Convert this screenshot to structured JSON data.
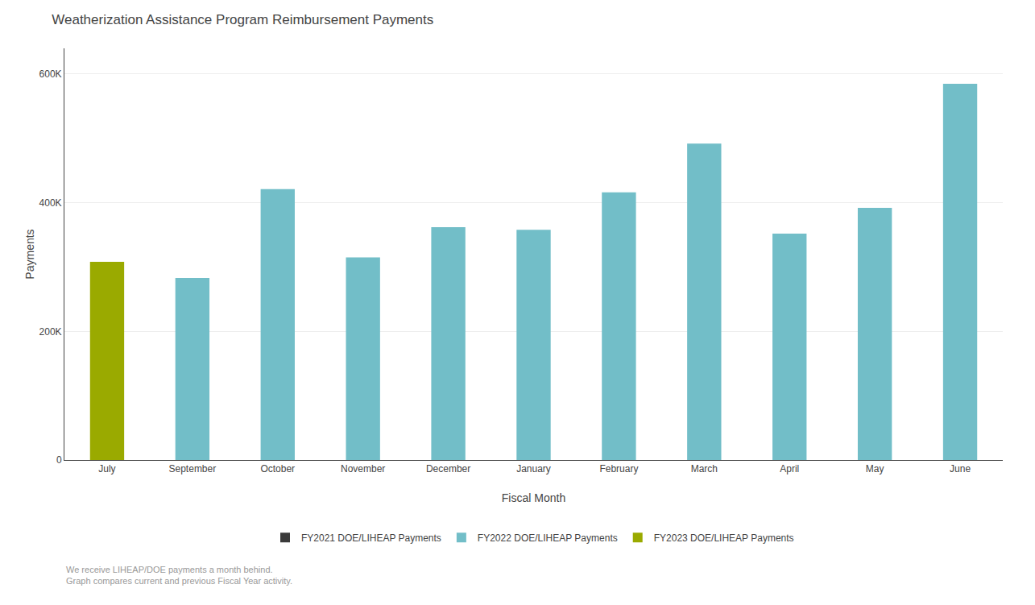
{
  "chart_data": {
    "type": "bar",
    "title": "Weatherization Assistance Program Reimbursement Payments",
    "xlabel": "Fiscal Month",
    "ylabel": "Payments",
    "annotations": [
      "We receive LIHEAP/DOE payments a month behind.",
      "Graph compares current and previous Fiscal Year activity."
    ],
    "categories": [
      "July",
      "September",
      "October",
      "November",
      "December",
      "January",
      "February",
      "March",
      "April",
      "May",
      "June"
    ],
    "series": [
      {
        "name": "FY2021 DOE/LIHEAP Payments",
        "color": "#3a3a3a",
        "values": [
          0,
          0,
          0,
          0,
          0,
          0,
          0,
          0,
          0,
          0,
          0
        ]
      },
      {
        "name": "FY2022 DOE/LIHEAP Payments",
        "color": "#72bec8",
        "values": [
          0,
          283000,
          421000,
          315000,
          362000,
          358000,
          416000,
          492000,
          352000,
          392000,
          585000
        ]
      },
      {
        "name": "FY2023 DOE/LIHEAP Payments",
        "color": "#9aaa00",
        "values": [
          308000,
          0,
          0,
          0,
          0,
          0,
          0,
          0,
          0,
          0,
          0
        ]
      }
    ],
    "ylim": [
      0,
      640000
    ],
    "yticks": [
      0,
      {
        "value": 200000,
        "label": "200K"
      },
      {
        "value": 400000,
        "label": "400K"
      },
      {
        "value": 600000,
        "label": "600K"
      }
    ],
    "grid": true,
    "legend": "bottom"
  }
}
